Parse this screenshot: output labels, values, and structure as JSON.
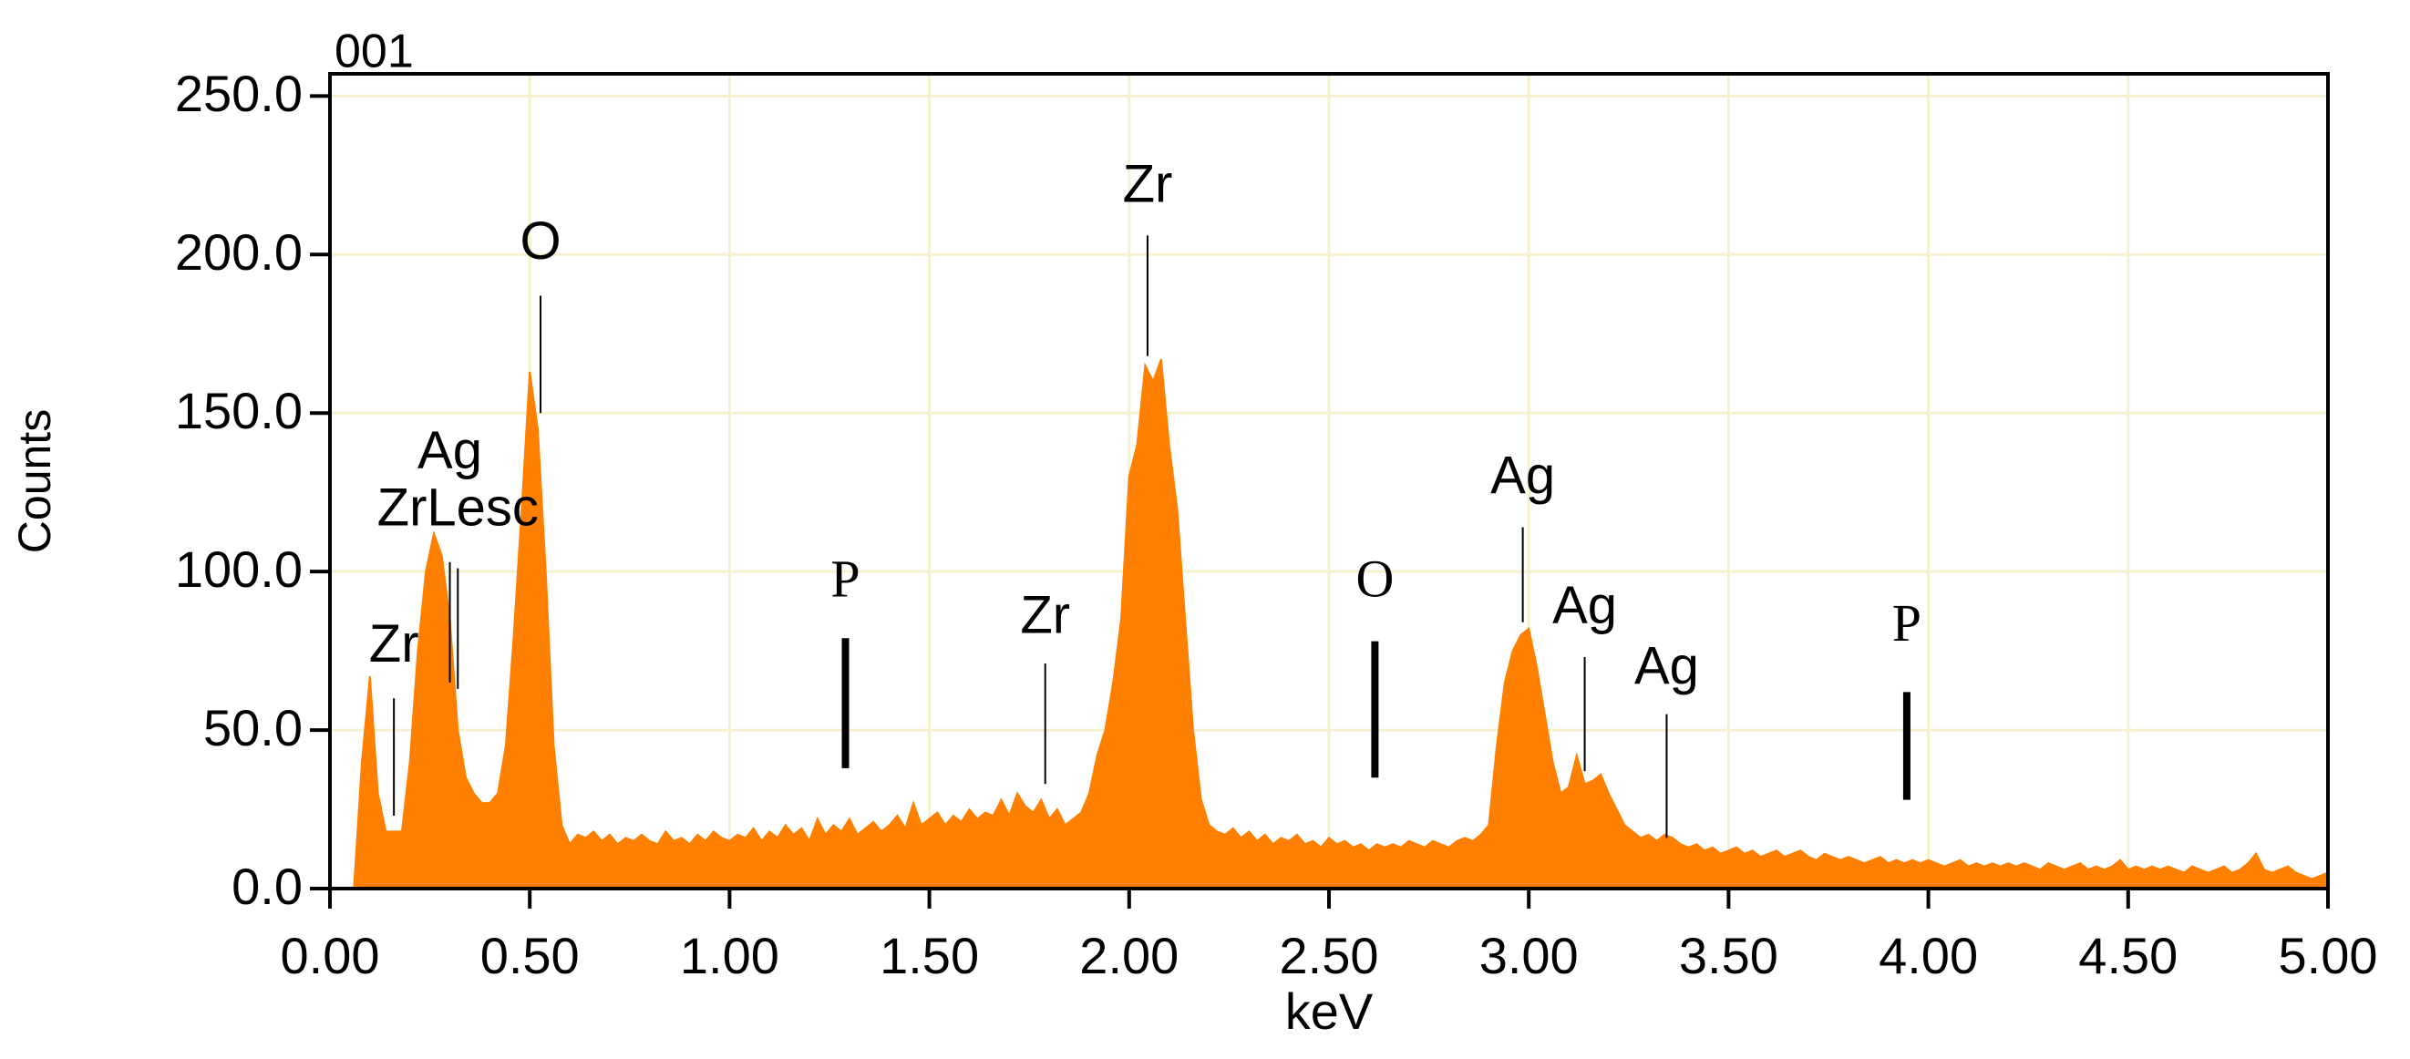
{
  "chart_data": {
    "type": "area",
    "corner_label": "001",
    "xlabel": "keV",
    "ylabel": "Counts",
    "color": "#ff8000",
    "grid": true,
    "grid_color": "#f6f1cf",
    "xlim": [
      0,
      5
    ],
    "ylim": [
      0,
      257
    ],
    "xticks": [
      {
        "value": 0,
        "label": "0.00"
      },
      {
        "value": 0.5,
        "label": "0.50"
      },
      {
        "value": 1,
        "label": "1.00"
      },
      {
        "value": 1.5,
        "label": "1.50"
      },
      {
        "value": 2,
        "label": "2.00"
      },
      {
        "value": 2.5,
        "label": "2.50"
      },
      {
        "value": 3,
        "label": "3.00"
      },
      {
        "value": 3.5,
        "label": "3.50"
      },
      {
        "value": 4,
        "label": "4.00"
      },
      {
        "value": 4.5,
        "label": "4.50"
      },
      {
        "value": 5,
        "label": "5.00"
      }
    ],
    "yticks": [
      {
        "value": 0,
        "label": "0.0"
      },
      {
        "value": 50,
        "label": "50.0"
      },
      {
        "value": 100,
        "label": "100.0"
      },
      {
        "value": 150,
        "label": "150.0"
      },
      {
        "value": 200,
        "label": "200.0"
      },
      {
        "value": 250,
        "label": "250.0"
      }
    ],
    "x": [
      0,
      0.02,
      0.04,
      0.06,
      0.08,
      0.1,
      0.12,
      0.14,
      0.16,
      0.18,
      0.2,
      0.22,
      0.24,
      0.26,
      0.28,
      0.3,
      0.32,
      0.34,
      0.36,
      0.38,
      0.4,
      0.42,
      0.44,
      0.46,
      0.48,
      0.5,
      0.52,
      0.54,
      0.56,
      0.58,
      0.6,
      0.62,
      0.64,
      0.66,
      0.68,
      0.7,
      0.72,
      0.74,
      0.76,
      0.78,
      0.8,
      0.82,
      0.84,
      0.86,
      0.88,
      0.9,
      0.92,
      0.94,
      0.96,
      0.98,
      1,
      1.02,
      1.04,
      1.06,
      1.08,
      1.1,
      1.12,
      1.14,
      1.16,
      1.18,
      1.2,
      1.22,
      1.24,
      1.26,
      1.28,
      1.3,
      1.32,
      1.34,
      1.36,
      1.38,
      1.4,
      1.42,
      1.44,
      1.46,
      1.48,
      1.5,
      1.52,
      1.54,
      1.56,
      1.58,
      1.6,
      1.62,
      1.64,
      1.66,
      1.68,
      1.7,
      1.72,
      1.74,
      1.76,
      1.78,
      1.8,
      1.82,
      1.84,
      1.86,
      1.88,
      1.9,
      1.92,
      1.94,
      1.96,
      1.98,
      2,
      2.02,
      2.04,
      2.06,
      2.08,
      2.1,
      2.12,
      2.14,
      2.16,
      2.18,
      2.2,
      2.22,
      2.24,
      2.26,
      2.28,
      2.3,
      2.32,
      2.34,
      2.36,
      2.38,
      2.4,
      2.42,
      2.44,
      2.46,
      2.48,
      2.5,
      2.52,
      2.54,
      2.56,
      2.58,
      2.6,
      2.62,
      2.64,
      2.66,
      2.68,
      2.7,
      2.72,
      2.74,
      2.76,
      2.78,
      2.8,
      2.82,
      2.84,
      2.86,
      2.88,
      2.9,
      2.92,
      2.94,
      2.96,
      2.98,
      3,
      3.02,
      3.04,
      3.06,
      3.08,
      3.1,
      3.12,
      3.14,
      3.16,
      3.18,
      3.2,
      3.22,
      3.24,
      3.26,
      3.28,
      3.3,
      3.32,
      3.34,
      3.36,
      3.38,
      3.4,
      3.42,
      3.44,
      3.46,
      3.48,
      3.5,
      3.52,
      3.54,
      3.56,
      3.58,
      3.6,
      3.62,
      3.64,
      3.66,
      3.68,
      3.7,
      3.72,
      3.74,
      3.76,
      3.78,
      3.8,
      3.82,
      3.84,
      3.86,
      3.88,
      3.9,
      3.92,
      3.94,
      3.96,
      3.98,
      4,
      4.02,
      4.04,
      4.06,
      4.08,
      4.1,
      4.12,
      4.14,
      4.16,
      4.18,
      4.2,
      4.22,
      4.24,
      4.26,
      4.28,
      4.3,
      4.32,
      4.34,
      4.36,
      4.38,
      4.4,
      4.42,
      4.44,
      4.46,
      4.48,
      4.5,
      4.52,
      4.54,
      4.56,
      4.58,
      4.6,
      4.62,
      4.64,
      4.66,
      4.68,
      4.7,
      4.72,
      4.74,
      4.76,
      4.78,
      4.8,
      4.82,
      4.84,
      4.86,
      4.88,
      4.9,
      4.92,
      4.94,
      4.96,
      4.98,
      5
    ],
    "values": [
      0,
      0,
      0,
      0,
      40,
      67,
      30,
      18,
      18,
      18,
      40,
      75,
      100,
      112,
      105,
      85,
      50,
      35,
      30,
      27,
      27,
      30,
      45,
      80,
      120,
      163,
      145,
      100,
      45,
      20,
      14,
      17,
      16,
      18,
      15,
      17,
      14,
      16,
      15,
      17,
      15,
      14,
      18,
      15,
      16,
      14,
      17,
      15,
      18,
      16,
      15,
      17,
      16,
      19,
      15,
      18,
      16,
      20,
      17,
      19,
      15,
      22,
      17,
      20,
      18,
      22,
      17,
      19,
      21,
      18,
      20,
      23,
      19,
      27,
      20,
      22,
      24,
      20,
      23,
      21,
      25,
      22,
      24,
      23,
      28,
      23,
      30,
      26,
      24,
      28,
      22,
      25,
      20,
      22,
      24,
      30,
      42,
      50,
      65,
      85,
      130,
      140,
      165,
      160,
      167,
      140,
      120,
      85,
      50,
      28,
      20,
      18,
      17,
      19,
      16,
      18,
      15,
      17,
      14,
      16,
      15,
      17,
      14,
      15,
      13,
      16,
      14,
      15,
      13,
      14,
      12,
      14,
      13,
      14,
      13,
      15,
      14,
      13,
      15,
      14,
      13,
      15,
      16,
      15,
      17,
      20,
      45,
      65,
      75,
      80,
      82,
      70,
      55,
      40,
      30,
      32,
      42,
      33,
      34,
      36,
      30,
      25,
      20,
      18,
      16,
      17,
      15,
      17,
      16,
      14,
      13,
      14,
      12,
      13,
      11,
      12,
      13,
      11,
      12,
      10,
      11,
      12,
      10,
      11,
      12,
      10,
      9,
      11,
      10,
      9,
      10,
      9,
      8,
      9,
      10,
      8,
      9,
      8,
      9,
      8,
      9,
      8,
      7,
      8,
      9,
      7,
      8,
      7,
      8,
      7,
      8,
      7,
      8,
      7,
      6,
      8,
      7,
      6,
      7,
      8,
      6,
      7,
      6,
      7,
      9,
      6,
      7,
      6,
      7,
      6,
      7,
      6,
      5,
      7,
      6,
      5,
      6,
      7,
      5,
      6,
      8,
      11,
      6,
      5,
      6,
      7,
      5,
      4,
      3,
      4,
      5
    ],
    "annotations": [
      {
        "text": "Zr",
        "x": 0.16,
        "y": 76,
        "line": [
          23,
          60
        ],
        "marker": "thin"
      },
      {
        "text": "Ag",
        "x": 0.3,
        "y": 137,
        "line": [
          65,
          103
        ],
        "marker": "thin"
      },
      {
        "text": "ZrLesc",
        "x": 0.32,
        "y": 119,
        "line": [
          63,
          101
        ],
        "marker": "thin"
      },
      {
        "text": "O",
        "x": 0.527,
        "y": 203,
        "line": [
          150,
          187
        ],
        "marker": "thin"
      },
      {
        "text": "P",
        "x": 1.29,
        "y": 96,
        "line": [
          38,
          79
        ],
        "marker": "thick"
      },
      {
        "text": "Zr",
        "x": 1.79,
        "y": 85,
        "line": [
          33,
          71
        ],
        "marker": "thin"
      },
      {
        "text": "Zr",
        "x": 2.046,
        "y": 221,
        "line": [
          168,
          206
        ],
        "marker": "thin"
      },
      {
        "text": "O",
        "x": 2.615,
        "y": 96,
        "line": [
          35,
          78
        ],
        "marker": "thick"
      },
      {
        "text": "Ag",
        "x": 2.985,
        "y": 129,
        "line": [
          84,
          114
        ],
        "marker": "thin"
      },
      {
        "text": "Ag",
        "x": 3.14,
        "y": 88,
        "line": [
          37,
          73
        ],
        "marker": "thin"
      },
      {
        "text": "Ag",
        "x": 3.345,
        "y": 69,
        "line": [
          16,
          55
        ],
        "marker": "thin"
      },
      {
        "text": "P",
        "x": 3.946,
        "y": 82,
        "line": [
          28,
          62
        ],
        "marker": "thick"
      }
    ]
  }
}
